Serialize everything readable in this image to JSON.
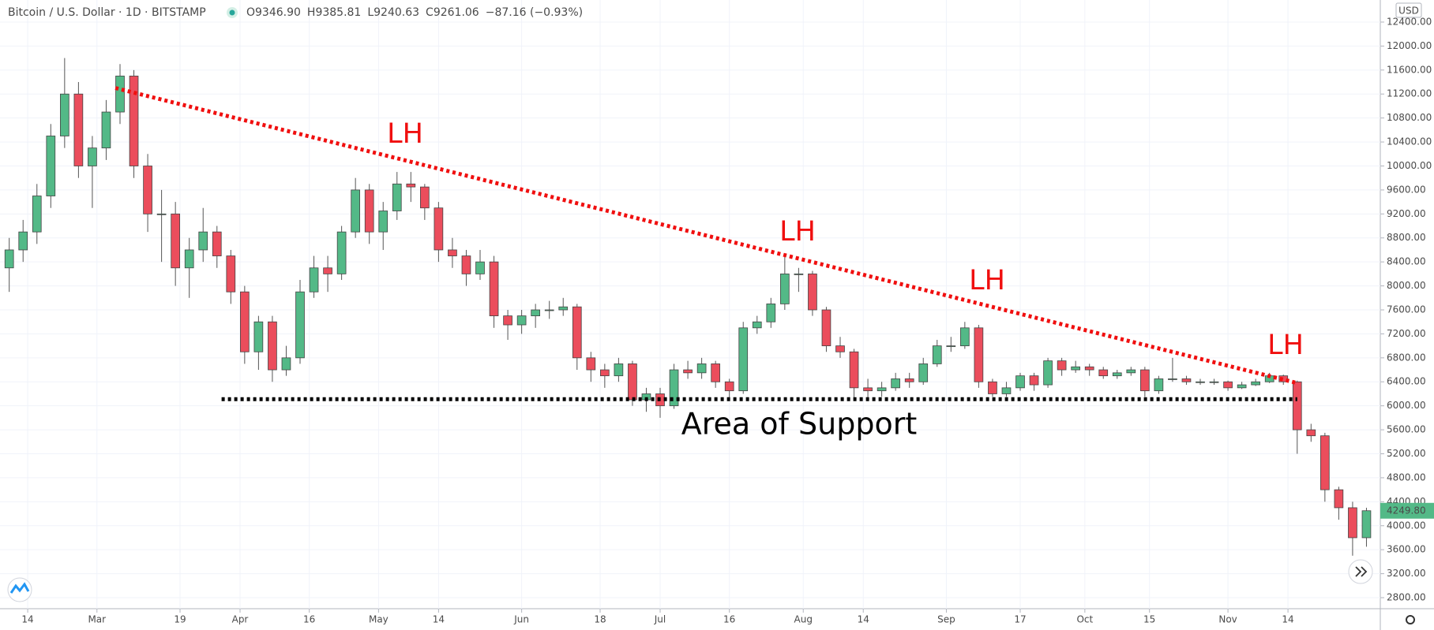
{
  "chart_data": {
    "type": "candlestick",
    "symbol": "Bitcoin / U.S. Dollar · 1D · BITSTAMP",
    "legend_values": [
      "O9346.90",
      "H9385.81",
      "L9240.63",
      "C9261.06",
      "−87.16 (−0.93%)"
    ],
    "currency": "USD",
    "up_color": "#53b987",
    "down_color": "#eb4d5c",
    "grid": true,
    "x": [
      9,
      12,
      15,
      18,
      21,
      24,
      27,
      30,
      33,
      36,
      39,
      42,
      45,
      48,
      51,
      54,
      57,
      60,
      63,
      66,
      69,
      72,
      75,
      78,
      81,
      84,
      87,
      90,
      93,
      96,
      99,
      102,
      105,
      108,
      111,
      114,
      117,
      120,
      123,
      126,
      129,
      132,
      135,
      138,
      141,
      144,
      147,
      150,
      153,
      156,
      159,
      162,
      165,
      168,
      171,
      174,
      177,
      180,
      183,
      186,
      189,
      192,
      195,
      198,
      201,
      204,
      207,
      210,
      213,
      216,
      219,
      222,
      225,
      228,
      231,
      234,
      237,
      240,
      243,
      246,
      249,
      252,
      255,
      258,
      261,
      264,
      267,
      270,
      273,
      276,
      279,
      282,
      285,
      288,
      291,
      294,
      297,
      300,
      303
    ],
    "ohlc": [
      [
        8300,
        8800,
        7900,
        8600
      ],
      [
        8600,
        9100,
        8400,
        8900
      ],
      [
        8900,
        9700,
        8700,
        9500
      ],
      [
        9500,
        10700,
        9300,
        10500
      ],
      [
        10500,
        11800,
        10300,
        11200
      ],
      [
        11200,
        11400,
        9800,
        10000
      ],
      [
        10000,
        10500,
        9300,
        10300
      ],
      [
        10300,
        11100,
        10100,
        10900
      ],
      [
        10900,
        11700,
        10700,
        11500
      ],
      [
        11500,
        11600,
        9800,
        10000
      ],
      [
        10000,
        10200,
        8900,
        9200
      ],
      [
        9200,
        9600,
        8400,
        9200
      ],
      [
        9200,
        9400,
        8000,
        8300
      ],
      [
        8300,
        8800,
        7800,
        8600
      ],
      [
        8600,
        9300,
        8400,
        8900
      ],
      [
        8900,
        9000,
        8300,
        8500
      ],
      [
        8500,
        8600,
        7700,
        7900
      ],
      [
        7900,
        8000,
        6700,
        6900
      ],
      [
        6900,
        7500,
        6600,
        7400
      ],
      [
        7400,
        7500,
        6400,
        6600
      ],
      [
        6600,
        7000,
        6500,
        6800
      ],
      [
        6800,
        8100,
        6700,
        7900
      ],
      [
        7900,
        8500,
        7800,
        8300
      ],
      [
        8300,
        8500,
        7900,
        8200
      ],
      [
        8200,
        9000,
        8100,
        8900
      ],
      [
        8900,
        9800,
        8800,
        9600
      ],
      [
        9600,
        9700,
        8700,
        8900
      ],
      [
        8900,
        9400,
        8600,
        9250
      ],
      [
        9250,
        9900,
        9100,
        9700
      ],
      [
        9700,
        9900,
        9400,
        9650
      ],
      [
        9650,
        9700,
        9100,
        9300
      ],
      [
        9300,
        9400,
        8400,
        8600
      ],
      [
        8600,
        8800,
        8300,
        8500
      ],
      [
        8500,
        8600,
        8000,
        8200
      ],
      [
        8200,
        8600,
        8100,
        8400
      ],
      [
        8400,
        8500,
        7300,
        7500
      ],
      [
        7500,
        7600,
        7100,
        7350
      ],
      [
        7350,
        7600,
        7200,
        7500
      ],
      [
        7500,
        7700,
        7300,
        7600
      ],
      [
        7600,
        7750,
        7450,
        7600
      ],
      [
        7600,
        7800,
        7500,
        7650
      ],
      [
        7650,
        7700,
        6600,
        6800
      ],
      [
        6800,
        6900,
        6400,
        6600
      ],
      [
        6600,
        6700,
        6300,
        6500
      ],
      [
        6500,
        6800,
        6400,
        6700
      ],
      [
        6700,
        6750,
        6000,
        6100
      ],
      [
        6100,
        6300,
        5900,
        6200
      ],
      [
        6200,
        6300,
        5800,
        6000
      ],
      [
        6000,
        6700,
        5950,
        6600
      ],
      [
        6600,
        6750,
        6450,
        6550
      ],
      [
        6550,
        6800,
        6450,
        6700
      ],
      [
        6700,
        6750,
        6300,
        6400
      ],
      [
        6400,
        6450,
        6100,
        6250
      ],
      [
        6250,
        7400,
        6200,
        7300
      ],
      [
        7300,
        7500,
        7200,
        7400
      ],
      [
        7400,
        7800,
        7300,
        7700
      ],
      [
        7700,
        8500,
        7600,
        8200
      ],
      [
        8200,
        8300,
        7900,
        8200
      ],
      [
        8200,
        8250,
        7500,
        7600
      ],
      [
        7600,
        7650,
        6900,
        7000
      ],
      [
        7000,
        7150,
        6800,
        6900
      ],
      [
        6900,
        6950,
        6100,
        6300
      ],
      [
        6300,
        6450,
        6100,
        6250
      ],
      [
        6250,
        6400,
        6150,
        6300
      ],
      [
        6300,
        6550,
        6250,
        6450
      ],
      [
        6450,
        6550,
        6300,
        6400
      ],
      [
        6400,
        6800,
        6350,
        6700
      ],
      [
        6700,
        7100,
        6650,
        7000
      ],
      [
        7000,
        7150,
        6900,
        7000
      ],
      [
        7000,
        7400,
        6950,
        7300
      ],
      [
        7300,
        7350,
        6300,
        6400
      ],
      [
        6400,
        6450,
        6150,
        6200
      ],
      [
        6200,
        6400,
        6150,
        6300
      ],
      [
        6300,
        6550,
        6250,
        6500
      ],
      [
        6500,
        6550,
        6250,
        6350
      ],
      [
        6350,
        6800,
        6300,
        6750
      ],
      [
        6750,
        6800,
        6500,
        6600
      ],
      [
        6600,
        6750,
        6550,
        6650
      ],
      [
        6650,
        6700,
        6500,
        6600
      ],
      [
        6600,
        6650,
        6450,
        6500
      ],
      [
        6500,
        6600,
        6450,
        6550
      ],
      [
        6550,
        6650,
        6500,
        6600
      ],
      [
        6600,
        6650,
        6150,
        6250
      ],
      [
        6250,
        6500,
        6200,
        6450
      ],
      [
        6450,
        6800,
        6400,
        6450
      ],
      [
        6450,
        6500,
        6350,
        6400
      ],
      [
        6400,
        6450,
        6350,
        6400
      ],
      [
        6400,
        6450,
        6350,
        6400
      ],
      [
        6400,
        6420,
        6250,
        6300
      ],
      [
        6300,
        6400,
        6280,
        6350
      ],
      [
        6350,
        6450,
        6330,
        6400
      ],
      [
        6400,
        6550,
        6380,
        6500
      ],
      [
        6500,
        6520,
        6350,
        6400
      ],
      [
        6400,
        6420,
        5200,
        5600
      ],
      [
        5600,
        5700,
        5400,
        5500
      ],
      [
        5500,
        5550,
        4400,
        4600
      ],
      [
        4600,
        4650,
        4100,
        4300
      ],
      [
        4300,
        4400,
        3500,
        3800
      ],
      [
        3800,
        4300,
        3650,
        4250
      ]
    ],
    "xlim": [
      7,
      306
    ],
    "ylim": [
      2616,
      12768
    ],
    "xticks": [
      {
        "value": 13,
        "label": "14"
      },
      {
        "value": 28,
        "label": "Mar"
      },
      {
        "value": 46,
        "label": "19"
      },
      {
        "value": 59,
        "label": "Apr"
      },
      {
        "value": 74,
        "label": "16"
      },
      {
        "value": 89,
        "label": "May"
      },
      {
        "value": 102,
        "label": "14"
      },
      {
        "value": 120,
        "label": "Jun"
      },
      {
        "value": 137,
        "label": "18"
      },
      {
        "value": 150,
        "label": "Jul"
      },
      {
        "value": 165,
        "label": "16"
      },
      {
        "value": 181,
        "label": "Aug"
      },
      {
        "value": 194,
        "label": "14"
      },
      {
        "value": 212,
        "label": "Sep"
      },
      {
        "value": 228,
        "label": "17"
      },
      {
        "value": 242,
        "label": "Oct"
      },
      {
        "value": 256,
        "label": "15"
      },
      {
        "value": 273,
        "label": "Nov"
      },
      {
        "value": 286,
        "label": "14"
      }
    ],
    "yticks": [
      {
        "value": 2800,
        "label": "2800.00"
      },
      {
        "value": 3200,
        "label": "3200.00"
      },
      {
        "value": 3600,
        "label": "3600.00"
      },
      {
        "value": 4000,
        "label": "4000.00"
      },
      {
        "value": 4400,
        "label": "4400.00"
      },
      {
        "value": 4800,
        "label": "4800.00"
      },
      {
        "value": 5200,
        "label": "5200.00"
      },
      {
        "value": 5600,
        "label": "5600.00"
      },
      {
        "value": 6000,
        "label": "6000.00"
      },
      {
        "value": 6400,
        "label": "6400.00"
      },
      {
        "value": 6800,
        "label": "6800.00"
      },
      {
        "value": 7200,
        "label": "7200.00"
      },
      {
        "value": 7600,
        "label": "7600.00"
      },
      {
        "value": 8000,
        "label": "8000.00"
      },
      {
        "value": 8400,
        "label": "8400.00"
      },
      {
        "value": 8800,
        "label": "8800.00"
      },
      {
        "value": 9200,
        "label": "9200.00"
      },
      {
        "value": 9600,
        "label": "9600.00"
      },
      {
        "value": 10000,
        "label": "10000.00"
      },
      {
        "value": 10400,
        "label": "10400.00"
      },
      {
        "value": 10800,
        "label": "10800.00"
      },
      {
        "value": 11200,
        "label": "11200.00"
      },
      {
        "value": 11600,
        "label": "11600.00"
      },
      {
        "value": 12000,
        "label": "12000.00"
      },
      {
        "value": 12400,
        "label": "12400.00"
      }
    ],
    "last_price": {
      "value": 4249.8,
      "label": "4249.80"
    },
    "lines": [
      {
        "color": "#f00f0f",
        "x": [
          32,
          288
        ],
        "y": [
          11300,
          6380
        ]
      },
      {
        "color": "#000000",
        "x": [
          55,
          288
        ],
        "y": [
          6110,
          6110
        ]
      }
    ],
    "annotations": [
      "LH",
      "LH",
      "LH",
      "LH",
      "Area of Support"
    ]
  }
}
